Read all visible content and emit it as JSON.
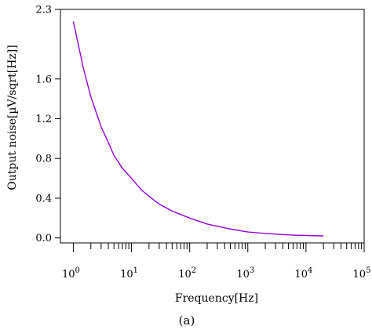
{
  "chart_data": {
    "type": "line",
    "title": "",
    "xlabel": "Frequency[Hz]",
    "ylabel": "Output noise[µV/sqrt[Hz]]",
    "x_scale": "log",
    "xlim": [
      0.6,
      100000
    ],
    "ylim": [
      -0.05,
      2.3
    ],
    "x_ticks": [
      {
        "value": 1,
        "base": "10",
        "exp": "0"
      },
      {
        "value": 10,
        "base": "10",
        "exp": "1"
      },
      {
        "value": 100,
        "base": "10",
        "exp": "2"
      },
      {
        "value": 1000,
        "base": "10",
        "exp": "3"
      },
      {
        "value": 10000,
        "base": "10",
        "exp": "4"
      },
      {
        "value": 100000,
        "base": "10",
        "exp": "5"
      }
    ],
    "y_ticks": [
      "0.0",
      "0.4",
      "0.8",
      "1.2",
      "1.6",
      "2.3"
    ],
    "grid": false,
    "series": [
      {
        "color": "#9400D3",
        "x": [
          1,
          1.5,
          2,
          3,
          4,
          5,
          7,
          10,
          15,
          20,
          30,
          50,
          100,
          200,
          500,
          1000,
          2000,
          5000,
          10000,
          20000
        ],
        "y": [
          2.18,
          1.7,
          1.42,
          1.12,
          0.96,
          0.83,
          0.7,
          0.6,
          0.48,
          0.42,
          0.34,
          0.27,
          0.2,
          0.14,
          0.09,
          0.06,
          0.045,
          0.03,
          0.025,
          0.02
        ]
      }
    ],
    "caption": "(a)"
  }
}
